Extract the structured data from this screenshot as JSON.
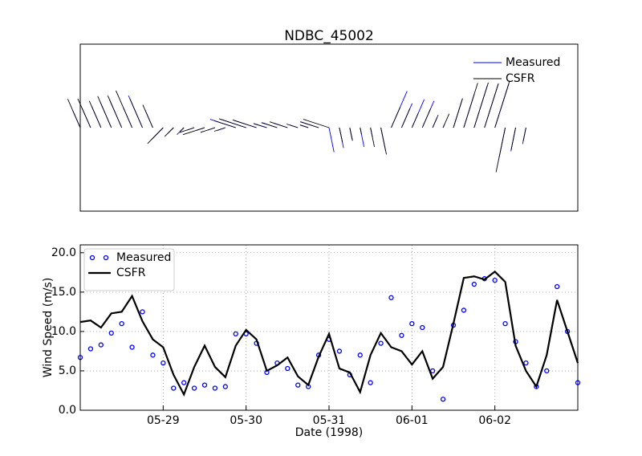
{
  "chart_data": [
    {
      "type": "stick",
      "title": "NDBC_45002",
      "xlim": [
        0,
        6
      ],
      "ylim": [
        -30,
        30
      ],
      "grid": false,
      "legend": "upper right",
      "x": [
        0,
        0.125,
        0.25,
        0.375,
        0.5,
        0.625,
        0.75,
        0.875,
        1,
        1.125,
        1.25,
        1.375,
        1.5,
        1.625,
        1.75,
        1.875,
        2,
        2.125,
        2.25,
        2.375,
        2.5,
        2.625,
        2.75,
        2.875,
        3,
        3.125,
        3.25,
        3.375,
        3.5,
        3.625,
        3.75,
        3.875,
        4,
        4.125,
        4.25,
        4.375,
        4.5,
        4.625,
        4.75,
        4.875,
        5,
        5.125,
        5.25,
        5.375
      ],
      "series": [
        {
          "name": "Measured",
          "color": "#0000ff",
          "u": [
            -2.7,
            -3.1,
            -3.3,
            -3.9,
            -4.4,
            -3.2,
            -5.0,
            -2.8,
            -4.2,
            -2.0,
            -2.5,
            -2.6,
            -3.0,
            -2.6,
            -2.8,
            -9.2,
            -9.2,
            -8.1,
            -4.6,
            -5.7,
            -5.0,
            -3.0,
            -2.9,
            -6.6,
            1.8,
            1.5,
            0.9,
            1.4,
            0.7,
            1.7,
            5.7,
            3.8,
            4.4,
            4.2,
            2.0,
            0.6,
            3.2,
            3.8,
            4.8,
            5.0,
            5.0,
            -2.2,
            -1.7,
            -1.2
          ],
          "v": [
            6.1,
            7.1,
            7.6,
            9.0,
            10.1,
            7.3,
            11.5,
            6.4,
            -4.3,
            -2.0,
            -2.5,
            -0.9,
            -1.0,
            -0.9,
            -1.0,
            3.0,
            3.0,
            2.6,
            1.4,
            1.8,
            1.6,
            1.0,
            0.9,
            2.1,
            -8.8,
            -7.3,
            -4.4,
            -6.9,
            -3.4,
            -8.3,
            13.1,
            8.7,
            10.1,
            9.6,
            4.6,
            1.3,
            10.3,
            12.1,
            15.3,
            15.9,
            15.7,
            -10.8,
            -8.5,
            -5.9
          ]
        },
        {
          "name": "CSFR",
          "color": "#000000",
          "u": [
            -4.5,
            -4.6,
            -4.2,
            -4.9,
            -5.0,
            -5.8,
            -4.5,
            -3.6,
            -5.6,
            -3.2,
            -1.4,
            -5.2,
            -7.8,
            -5.2,
            -4.0,
            -7.8,
            -9.7,
            -8.6,
            -4.8,
            -5.4,
            -6.4,
            -4.1,
            -3.0,
            -6.5,
            -9.2,
            1.1,
            1.0,
            0.5,
            1.4,
            2.0,
            3.2,
            3.0,
            2.3,
            3.0,
            1.6,
            2.2,
            3.3,
            5.0,
            5.1,
            5.0,
            5.3,
            -3.3,
            -1.6,
            -1.0
          ],
          "v": [
            10.3,
            10.4,
            9.6,
            11.3,
            11.5,
            13.3,
            10.4,
            8.2,
            -5.7,
            -3.2,
            -1.4,
            -1.7,
            -2.5,
            -1.7,
            -1.3,
            2.5,
            3.2,
            2.8,
            1.5,
            1.8,
            2.1,
            1.3,
            1.0,
            2.1,
            3.0,
            -5.2,
            -4.7,
            -2.3,
            -6.9,
            -9.6,
            7.3,
            6.9,
            5.3,
            6.9,
            3.7,
            5.0,
            10.5,
            16.0,
            16.2,
            15.8,
            16.8,
            -16.0,
            -8.0,
            -4.9
          ]
        }
      ]
    },
    {
      "type": "line",
      "xlabel": "Date (1998)",
      "ylabel": "Wind Speed (m/s)",
      "xlim": [
        0,
        6
      ],
      "ylim": [
        0,
        21
      ],
      "grid": true,
      "legend": "upper left",
      "xticks": [
        {
          "value": 1,
          "label": "05-29"
        },
        {
          "value": 2,
          "label": "05-30"
        },
        {
          "value": 3,
          "label": "05-31"
        },
        {
          "value": 4,
          "label": "06-01"
        },
        {
          "value": 5,
          "label": "06-02"
        }
      ],
      "yticks": [
        {
          "value": 0,
          "label": "0.0"
        },
        {
          "value": 5,
          "label": "5.0"
        },
        {
          "value": 10,
          "label": "10.0"
        },
        {
          "value": 15,
          "label": "15.0"
        },
        {
          "value": 20,
          "label": "20.0"
        }
      ],
      "x": [
        0,
        0.125,
        0.25,
        0.375,
        0.5,
        0.625,
        0.75,
        0.875,
        1,
        1.125,
        1.25,
        1.375,
        1.5,
        1.625,
        1.75,
        1.875,
        2,
        2.125,
        2.25,
        2.375,
        2.5,
        2.625,
        2.75,
        2.875,
        3,
        3.125,
        3.25,
        3.375,
        3.5,
        3.625,
        3.75,
        3.875,
        4,
        4.125,
        4.25,
        4.375,
        4.5,
        4.625,
        4.75,
        4.875,
        5,
        5.125,
        5.25,
        5.375,
        5.5,
        5.625,
        5.75,
        5.875,
        6
      ],
      "series": [
        {
          "name": "Measured",
          "color": "#0000ff",
          "mode": "markers",
          "values": [
            6.7,
            7.8,
            8.3,
            9.8,
            11.0,
            8.0,
            12.5,
            7.0,
            6.0,
            2.8,
            3.5,
            2.8,
            3.2,
            2.8,
            3.0,
            9.7,
            9.7,
            8.5,
            4.8,
            6.0,
            5.3,
            3.2,
            3.0,
            7.0,
            9.0,
            7.5,
            4.5,
            7.0,
            3.5,
            8.5,
            14.3,
            9.5,
            11.0,
            10.5,
            5.0,
            1.4,
            10.8,
            12.7,
            16.0,
            16.7,
            16.5,
            11.0,
            8.7,
            6.0,
            3.0,
            5.0,
            15.7,
            10.0,
            3.5
          ]
        },
        {
          "name": "CSFR",
          "color": "#000000",
          "mode": "line",
          "values": [
            11.2,
            11.4,
            10.5,
            12.3,
            12.5,
            14.5,
            11.3,
            9.0,
            8.0,
            4.5,
            2.0,
            5.5,
            8.2,
            5.5,
            4.2,
            8.2,
            10.2,
            9.0,
            5.0,
            5.7,
            6.7,
            4.3,
            3.2,
            6.8,
            9.7,
            5.3,
            4.8,
            2.3,
            7.0,
            9.8,
            8.0,
            7.5,
            5.8,
            7.5,
            4.0,
            5.5,
            11.0,
            16.8,
            17.0,
            16.6,
            17.6,
            16.3,
            8.2,
            5.0,
            3.0,
            7.0,
            14.0,
            10.0,
            6.0
          ]
        }
      ]
    }
  ]
}
